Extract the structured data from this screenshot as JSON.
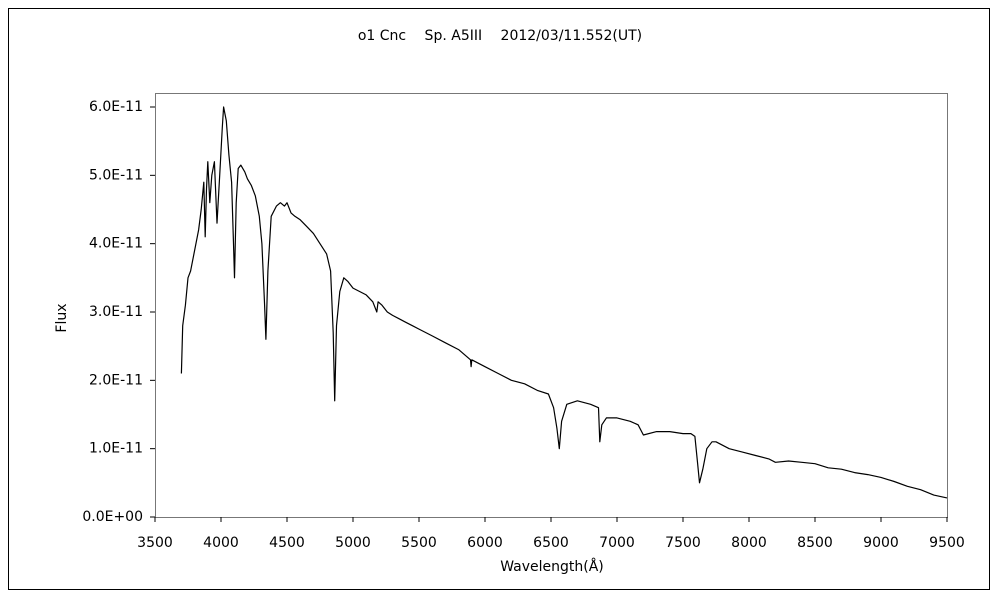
{
  "chart_data": {
    "type": "line",
    "title": "ο1 Cnc　 Sp. A5III　 2012/03/11.552(UT)",
    "xlabel": "Wavelength(Å)",
    "ylabel": "Flux",
    "color": "#000000",
    "x": [
      3700,
      3710,
      3730,
      3750,
      3770,
      3800,
      3830,
      3850,
      3870,
      3880,
      3890,
      3900,
      3915,
      3930,
      3950,
      3970,
      3990,
      4010,
      4020,
      4040,
      4060,
      4080,
      4095,
      4102,
      4115,
      4130,
      4150,
      4180,
      4200,
      4230,
      4260,
      4290,
      4310,
      4330,
      4340,
      4355,
      4380,
      4420,
      4450,
      4480,
      4500,
      4530,
      4560,
      4600,
      4650,
      4700,
      4750,
      4800,
      4830,
      4850,
      4861,
      4875,
      4900,
      4930,
      4960,
      5000,
      5050,
      5100,
      5150,
      5180,
      5190,
      5220,
      5260,
      5300,
      5350,
      5400,
      5450,
      5500,
      5600,
      5700,
      5800,
      5890,
      5895,
      5900,
      6000,
      6100,
      6200,
      6300,
      6400,
      6480,
      6520,
      6545,
      6563,
      6580,
      6620,
      6700,
      6800,
      6860,
      6870,
      6885,
      6920,
      7000,
      7100,
      7160,
      7200,
      7300,
      7400,
      7500,
      7560,
      7590,
      7610,
      7625,
      7650,
      7680,
      7720,
      7750,
      7850,
      7950,
      8050,
      8150,
      8200,
      8300,
      8400,
      8500,
      8600,
      8700,
      8800,
      8900,
      9000,
      9100,
      9200,
      9300,
      9400,
      9500
    ],
    "values": [
      2.1e-11,
      2.8e-11,
      3.1e-11,
      3.5e-11,
      3.6e-11,
      3.9e-11,
      4.2e-11,
      4.5e-11,
      4.9e-11,
      4.1e-11,
      4.8e-11,
      5.2e-11,
      4.6e-11,
      5e-11,
      5.2e-11,
      4.3e-11,
      5e-11,
      5.7e-11,
      6e-11,
      5.8e-11,
      5.3e-11,
      4.9e-11,
      4e-11,
      3.5e-11,
      4.6e-11,
      5.1e-11,
      5.15e-11,
      5.05e-11,
      4.95e-11,
      4.85e-11,
      4.7e-11,
      4.4e-11,
      4e-11,
      3.1e-11,
      2.6e-11,
      3.6e-11,
      4.4e-11,
      4.55e-11,
      4.6e-11,
      4.55e-11,
      4.6e-11,
      4.45e-11,
      4.4e-11,
      4.35e-11,
      4.25e-11,
      4.15e-11,
      4e-11,
      3.85e-11,
      3.6e-11,
      2.7e-11,
      1.7e-11,
      2.8e-11,
      3.3e-11,
      3.5e-11,
      3.45e-11,
      3.35e-11,
      3.3e-11,
      3.25e-11,
      3.15e-11,
      3e-11,
      3.15e-11,
      3.1e-11,
      3e-11,
      2.95e-11,
      2.9e-11,
      2.85e-11,
      2.8e-11,
      2.75e-11,
      2.65e-11,
      2.55e-11,
      2.45e-11,
      2.3e-11,
      2.2e-11,
      2.3e-11,
      2.2e-11,
      2.1e-11,
      2e-11,
      1.95e-11,
      1.85e-11,
      1.8e-11,
      1.6e-11,
      1.3e-11,
      1e-11,
      1.4e-11,
      1.65e-11,
      1.7e-11,
      1.65e-11,
      1.6e-11,
      1.1e-11,
      1.35e-11,
      1.45e-11,
      1.45e-11,
      1.4e-11,
      1.35e-11,
      1.2e-11,
      1.25e-11,
      1.25e-11,
      1.22e-11,
      1.22e-11,
      1.18e-11,
      8e-12,
      5e-12,
      7e-12,
      1e-11,
      1.1e-11,
      1.1e-11,
      1e-11,
      9.5e-12,
      9e-12,
      8.5e-12,
      8e-12,
      8.2e-12,
      8e-12,
      7.8e-12,
      7.2e-12,
      7e-12,
      6.5e-12,
      6.2e-12,
      5.8e-12,
      5.2e-12,
      4.5e-12,
      4e-12,
      3.2e-12,
      2.8e-12
    ],
    "xlim": [
      3500,
      9500
    ],
    "xticks": [
      3500,
      4000,
      4500,
      5000,
      5500,
      6000,
      6500,
      7000,
      7500,
      8000,
      8500,
      9000,
      9500
    ],
    "ylim": [
      0,
      6e-11
    ],
    "yticks": [
      {
        "value": 0,
        "label": "0.0E+00"
      },
      {
        "value": 1e-11,
        "label": "1.0E-11"
      },
      {
        "value": 2e-11,
        "label": "2.0E-11"
      },
      {
        "value": 3e-11,
        "label": "3.0E-11"
      },
      {
        "value": 4e-11,
        "label": "4.0E-11"
      },
      {
        "value": 5e-11,
        "label": "5.0E-11"
      },
      {
        "value": 6e-11,
        "label": "6.0E-11"
      }
    ],
    "grid": false
  }
}
